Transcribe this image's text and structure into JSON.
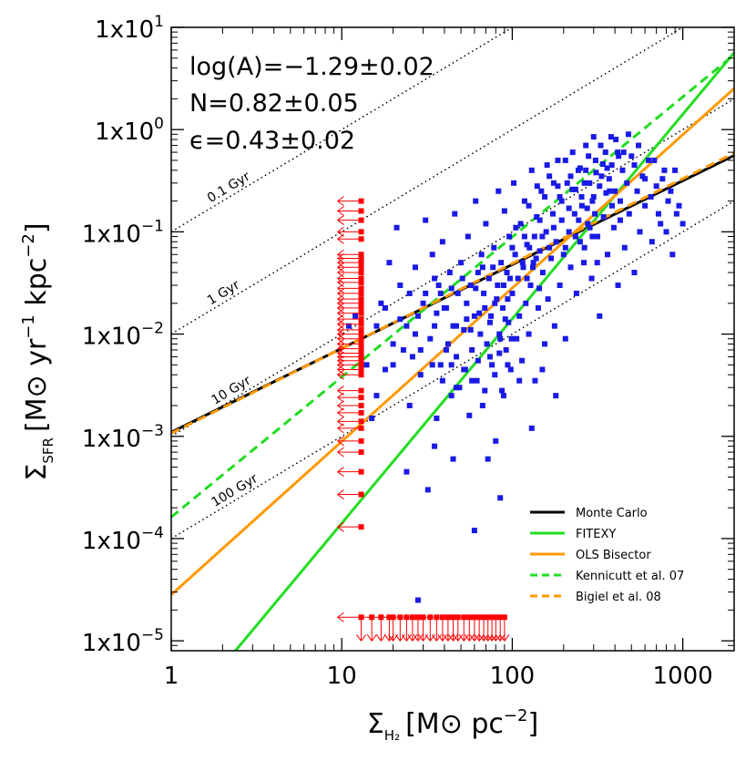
{
  "chart_data": {
    "type": "scatter",
    "scale": "log-log",
    "xlim": [
      1,
      2000
    ],
    "ylim": [
      8e-06,
      10
    ],
    "x_ticks": [
      {
        "value": 1,
        "label": "1"
      },
      {
        "value": 10,
        "label": "10"
      },
      {
        "value": 100,
        "label": "100"
      },
      {
        "value": 1000,
        "label": "1000"
      }
    ],
    "y_ticks": [
      {
        "value": 1e-05,
        "base": "1x10",
        "exp": "−5"
      },
      {
        "value": 0.0001,
        "base": "1x10",
        "exp": "−4"
      },
      {
        "value": 0.001,
        "base": "1x10",
        "exp": "−3"
      },
      {
        "value": 0.01,
        "base": "1x10",
        "exp": "−2"
      },
      {
        "value": 0.1,
        "base": "1x10",
        "exp": "−1"
      },
      {
        "value": 1,
        "base": "1x10",
        "exp": "0"
      },
      {
        "value": 10,
        "base": "1x10",
        "exp": "1"
      }
    ],
    "xlabel": {
      "sym": "Σ",
      "sub": "H₂",
      "units_pre": "[M",
      "sun": "⊙",
      "units_post": " pc",
      "exp": "−2",
      "close": "]"
    },
    "ylabel": {
      "sym": "Σ",
      "sub": "SFR",
      "units_pre": "[M",
      "sun": "⊙",
      "units_mid": " yr",
      "exp1": "−1",
      "units_mid2": " kpc",
      "exp2": "−2",
      "close": "]"
    },
    "annotations": [
      "log(A)=−1.29±0.02",
      "N=0.82±0.05",
      "ϵ=0.43±0.02"
    ],
    "depletion_times": [
      {
        "label": "0.1 Gyr",
        "log_offset": -1,
        "label_x": 1.7
      },
      {
        "label": "1 Gyr",
        "log_offset": -2,
        "label_x": 1.7
      },
      {
        "label": "10 Gyr",
        "log_offset": -3,
        "label_x": 1.8
      },
      {
        "label": "100 Gyr",
        "log_offset": -4,
        "label_x": 1.8
      }
    ],
    "fits": [
      {
        "name": "Monte Carlo",
        "logA": -2.96,
        "N": 0.82,
        "color": "#000000",
        "dash": false
      },
      {
        "name": "FITEXY",
        "logA": -5.85,
        "N": 2.0,
        "color": "#22dd22",
        "dash": false
      },
      {
        "name": "OLS Bisector",
        "logA": -4.55,
        "N": 1.5,
        "color": "#ff9900",
        "dash": false
      },
      {
        "name": "Kennicutt et al. 07",
        "logA": -3.79,
        "N": 1.37,
        "color": "#22dd22",
        "dash": true
      },
      {
        "name": "Bigiel et al. 08",
        "logA": -2.97,
        "N": 0.83,
        "color": "#ff9900",
        "dash": true
      }
    ],
    "upper_limits_x": {
      "x": 13,
      "y": [
        0.2,
        0.16,
        0.13,
        0.1,
        0.085,
        0.06,
        0.055,
        0.05,
        0.045,
        0.04,
        0.035,
        0.032,
        0.028,
        0.025,
        0.022,
        0.02,
        0.018,
        0.016,
        0.014,
        0.0125,
        0.011,
        0.01,
        0.009,
        0.008,
        0.0072,
        0.0065,
        0.006,
        0.0055,
        0.005,
        0.0045,
        0.004,
        0.0028,
        0.0024,
        0.002,
        0.0017,
        0.0014,
        0.0012,
        0.0009,
        0.0007,
        0.00045,
        0.00027,
        0.00013
      ]
    },
    "upper_limits_y": {
      "y": 1.7e-05,
      "x": [
        13,
        15,
        17,
        19,
        20,
        22,
        24,
        26,
        28,
        30,
        33,
        36,
        39,
        42,
        45,
        48,
        52,
        56,
        60,
        64,
        68,
        72,
        76,
        80,
        85,
        90
      ]
    },
    "detections_color": "#1a1ae6",
    "limits_color": "#ff0000",
    "detections": [
      [
        11,
        0.012
      ],
      [
        12,
        0.015
      ],
      [
        14,
        0.005
      ],
      [
        15,
        0.0015
      ],
      [
        13,
        0.006
      ],
      [
        16,
        0.0025
      ],
      [
        17,
        0.02
      ],
      [
        18,
        0.0045
      ],
      [
        19,
        0.05
      ],
      [
        20,
        0.008
      ],
      [
        21,
        0.11
      ],
      [
        22,
        0.03
      ],
      [
        23,
        0.007
      ],
      [
        24,
        0.012
      ],
      [
        25,
        0.002
      ],
      [
        26,
        0.006
      ],
      [
        27,
        0.045
      ],
      [
        28,
        0.015
      ],
      [
        29,
        0.004
      ],
      [
        30,
        0.02
      ],
      [
        31,
        0.13
      ],
      [
        32,
        0.0003
      ],
      [
        33,
        0.009
      ],
      [
        34,
        0.06
      ],
      [
        35,
        0.012
      ],
      [
        36,
        0.0015
      ],
      [
        37,
        0.03
      ],
      [
        38,
        0.005
      ],
      [
        39,
        0.08
      ],
      [
        40,
        0.018
      ],
      [
        42,
        0.008
      ],
      [
        43,
        0.04
      ],
      [
        44,
        0.0025
      ],
      [
        45,
        0.012
      ],
      [
        46,
        0.15
      ],
      [
        47,
        0.006
      ],
      [
        48,
        0.025
      ],
      [
        49,
        0.003
      ],
      [
        50,
        0.05
      ],
      [
        52,
        0.011
      ],
      [
        53,
        0.0045
      ],
      [
        54,
        0.02
      ],
      [
        55,
        0.09
      ],
      [
        56,
        0.0016
      ],
      [
        57,
        0.03
      ],
      [
        58,
        0.007
      ],
      [
        60,
        0.015
      ],
      [
        61,
        0.2
      ],
      [
        62,
        0.0035
      ],
      [
        63,
        0.04
      ],
      [
        65,
        0.01
      ],
      [
        66,
        0.06
      ],
      [
        67,
        0.002
      ],
      [
        68,
        0.025
      ],
      [
        70,
        0.12
      ],
      [
        71,
        0.008
      ],
      [
        72,
        0.0006
      ],
      [
        73,
        0.035
      ],
      [
        75,
        0.015
      ],
      [
        76,
        0.005
      ],
      [
        78,
        0.07
      ],
      [
        79,
        0.02
      ],
      [
        80,
        0.0009
      ],
      [
        82,
        0.03
      ],
      [
        83,
        0.25
      ],
      [
        84,
        0.01
      ],
      [
        86,
        0.05
      ],
      [
        87,
        0.0028
      ],
      [
        88,
        0.018
      ],
      [
        90,
        0.16
      ],
      [
        92,
        0.007
      ],
      [
        93,
        0.04
      ],
      [
        95,
        0.013
      ],
      [
        96,
        0.09
      ],
      [
        98,
        0.0045
      ],
      [
        100,
        0.025
      ],
      [
        102,
        0.3
      ],
      [
        104,
        0.06
      ],
      [
        106,
        0.009
      ],
      [
        108,
        0.035
      ],
      [
        110,
        0.015
      ],
      [
        112,
        0.12
      ],
      [
        114,
        0.0055
      ],
      [
        116,
        0.045
      ],
      [
        118,
        0.2
      ],
      [
        120,
        0.02
      ],
      [
        122,
        0.075
      ],
      [
        125,
        0.01
      ],
      [
        128,
        0.03
      ],
      [
        130,
        0.4
      ],
      [
        133,
        0.05
      ],
      [
        136,
        0.0035
      ],
      [
        139,
        0.14
      ],
      [
        142,
        0.018
      ],
      [
        145,
        0.065
      ],
      [
        148,
        0.25
      ],
      [
        151,
        0.04
      ],
      [
        155,
        0.008
      ],
      [
        158,
        0.1
      ],
      [
        162,
        0.022
      ],
      [
        165,
        0.35
      ],
      [
        169,
        0.055
      ],
      [
        173,
        0.15
      ],
      [
        177,
        0.012
      ],
      [
        181,
        0.08
      ],
      [
        185,
        0.5
      ],
      [
        190,
        0.03
      ],
      [
        195,
        0.2
      ],
      [
        200,
        0.06
      ],
      [
        205,
        0.009
      ],
      [
        210,
        0.3
      ],
      [
        215,
        0.1
      ],
      [
        220,
        0.045
      ],
      [
        226,
        0.6
      ],
      [
        232,
        0.15
      ],
      [
        238,
        0.025
      ],
      [
        244,
        0.4
      ],
      [
        250,
        0.08
      ],
      [
        256,
        0.18
      ],
      [
        263,
        0.05
      ],
      [
        270,
        0.7
      ],
      [
        277,
        0.12
      ],
      [
        284,
        0.3
      ],
      [
        292,
        0.035
      ],
      [
        300,
        0.22
      ],
      [
        308,
        0.5
      ],
      [
        316,
        0.09
      ],
      [
        325,
        0.015
      ],
      [
        334,
        0.35
      ],
      [
        343,
        0.14
      ],
      [
        352,
        0.6
      ],
      [
        362,
        0.06
      ],
      [
        372,
        0.25
      ],
      [
        383,
        0.45
      ],
      [
        394,
        0.11
      ],
      [
        405,
        0.8
      ],
      [
        417,
        0.03
      ],
      [
        430,
        0.2
      ],
      [
        443,
        0.4
      ],
      [
        456,
        0.07
      ],
      [
        470,
        0.3
      ],
      [
        485,
        0.15
      ],
      [
        500,
        0.55
      ],
      [
        520,
        0.04
      ],
      [
        540,
        0.25
      ],
      [
        560,
        0.1
      ],
      [
        580,
        0.35
      ],
      [
        600,
        0.18
      ],
      [
        630,
        0.5
      ],
      [
        660,
        0.08
      ],
      [
        700,
        0.28
      ],
      [
        740,
        0.12
      ],
      [
        780,
        0.4
      ],
      [
        820,
        0.2
      ],
      [
        870,
        0.06
      ],
      [
        920,
        0.15
      ],
      [
        60,
        0.00012
      ],
      [
        45,
        0.0006
      ],
      [
        85,
        0.00025
      ],
      [
        130,
        0.0012
      ],
      [
        24,
        0.00045
      ],
      [
        180,
        0.0025
      ],
      [
        35,
        0.0008
      ],
      [
        110,
        0.0035
      ],
      [
        28,
        2.5e-05
      ],
      [
        150,
        0.0045
      ],
      [
        140,
        0.28
      ],
      [
        160,
        0.45
      ],
      [
        175,
        0.3
      ],
      [
        190,
        0.22
      ],
      [
        205,
        0.5
      ],
      [
        220,
        0.35
      ],
      [
        235,
        0.26
      ],
      [
        250,
        0.42
      ],
      [
        265,
        0.3
      ],
      [
        280,
        0.55
      ],
      [
        295,
        0.2
      ],
      [
        310,
        0.38
      ],
      [
        325,
        0.28
      ],
      [
        340,
        0.46
      ],
      [
        355,
        0.24
      ],
      [
        370,
        0.33
      ],
      [
        385,
        0.18
      ],
      [
        400,
        0.25
      ],
      [
        415,
        0.6
      ],
      [
        430,
        0.13
      ],
      [
        125,
        0.18
      ],
      [
        135,
        0.09
      ],
      [
        145,
        0.13
      ],
      [
        155,
        0.22
      ],
      [
        165,
        0.07
      ],
      [
        175,
        0.11
      ],
      [
        185,
        0.28
      ],
      [
        195,
        0.13
      ],
      [
        205,
        0.07
      ],
      [
        215,
        0.17
      ],
      [
        225,
        0.26
      ],
      [
        235,
        0.09
      ],
      [
        245,
        0.13
      ],
      [
        255,
        0.22
      ],
      [
        265,
        0.07
      ],
      [
        275,
        0.17
      ],
      [
        285,
        0.11
      ],
      [
        295,
        0.09
      ],
      [
        305,
        0.15
      ],
      [
        315,
        0.05
      ],
      [
        100,
        0.07
      ],
      [
        105,
        0.11
      ],
      [
        115,
        0.05
      ],
      [
        118,
        0.09
      ],
      [
        122,
        0.035
      ],
      [
        126,
        0.07
      ],
      [
        132,
        0.045
      ],
      [
        138,
        0.055
      ],
      [
        144,
        0.028
      ],
      [
        150,
        0.09
      ],
      [
        35,
        0.035
      ],
      [
        38,
        0.025
      ],
      [
        41,
        0.018
      ],
      [
        44,
        0.028
      ],
      [
        47,
        0.012
      ],
      [
        51,
        0.035
      ],
      [
        54,
        0.014
      ],
      [
        57,
        0.011
      ],
      [
        61,
        0.028
      ],
      [
        64,
        0.016
      ],
      [
        67,
        0.045
      ],
      [
        69,
        0.018
      ],
      [
        74,
        0.013
      ],
      [
        77,
        0.045
      ],
      [
        81,
        0.022
      ],
      [
        85,
        0.009
      ],
      [
        89,
        0.03
      ],
      [
        91,
        0.014
      ],
      [
        94,
        0.022
      ],
      [
        97,
        0.035
      ],
      [
        16,
        0.012
      ],
      [
        18,
        0.018
      ],
      [
        20,
        0.005
      ],
      [
        22,
        0.014
      ],
      [
        25,
        0.025
      ],
      [
        27,
        0.01
      ],
      [
        29,
        0.007
      ],
      [
        31,
        0.025
      ],
      [
        34,
        0.005
      ],
      [
        36,
        0.016
      ],
      [
        39,
        0.0035
      ],
      [
        41,
        0.007
      ],
      [
        44,
        0.005
      ],
      [
        47,
        0.003
      ],
      [
        52,
        0.0045
      ],
      [
        58,
        0.0035
      ],
      [
        63,
        0.0055
      ],
      [
        69,
        0.0028
      ],
      [
        74,
        0.006
      ],
      [
        79,
        0.004
      ],
      [
        84,
        0.0065
      ],
      [
        89,
        0.0025
      ],
      [
        94,
        0.005
      ],
      [
        99,
        0.009
      ],
      [
        450,
        0.6
      ],
      [
        480,
        0.9
      ],
      [
        520,
        0.45
      ],
      [
        550,
        0.7
      ],
      [
        600,
        0.33
      ],
      [
        650,
        0.22
      ],
      [
        680,
        0.5
      ],
      [
        720,
        0.15
      ],
      [
        760,
        0.33
      ],
      [
        800,
        0.1
      ],
      [
        850,
        0.25
      ],
      [
        900,
        0.4
      ],
      [
        950,
        0.18
      ],
      [
        1000,
        0.12
      ],
      [
        380,
        0.85
      ],
      [
        420,
        0.55
      ],
      [
        360,
        0.42
      ],
      [
        330,
        0.7
      ],
      [
        300,
        0.85
      ],
      [
        270,
        0.4
      ]
    ],
    "legend": {
      "position": "bottom-right"
    }
  }
}
